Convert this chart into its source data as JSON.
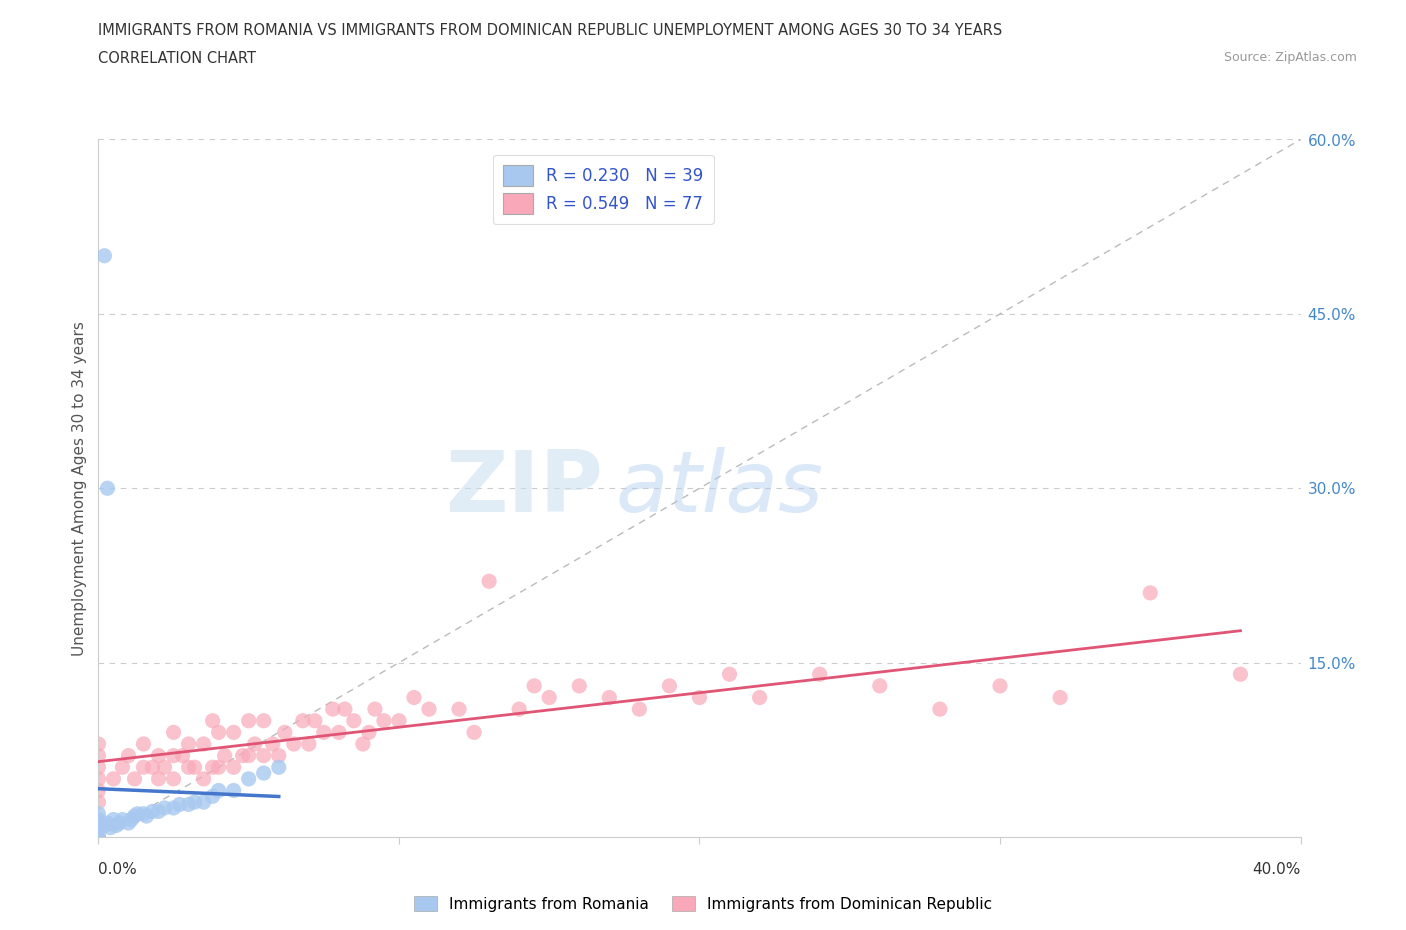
{
  "title_line1": "IMMIGRANTS FROM ROMANIA VS IMMIGRANTS FROM DOMINICAN REPUBLIC UNEMPLOYMENT AMONG AGES 30 TO 34 YEARS",
  "title_line2": "CORRELATION CHART",
  "source": "Source: ZipAtlas.com",
  "ylabel": "Unemployment Among Ages 30 to 34 years",
  "color_romania": "#a8c8f0",
  "color_dr": "#f8a8b8",
  "color_romania_line": "#4477cc",
  "color_dr_line": "#e05575",
  "diagonal_color": "#bbbbbb",
  "background_color": "#ffffff",
  "watermark_zip": "ZIP",
  "watermark_atlas": "atlas",
  "ytick_vals": [
    0.0,
    0.15,
    0.3,
    0.45,
    0.6
  ],
  "ytick_labels": [
    "",
    "15.0%",
    "30.0%",
    "45.0%",
    "60.0%"
  ],
  "xlim": [
    0.0,
    0.4
  ],
  "ylim": [
    0.0,
    0.6
  ],
  "romania_x": [
    0.0,
    0.0,
    0.0,
    0.0,
    0.0,
    0.0,
    0.0,
    0.0,
    0.0,
    0.0,
    0.002,
    0.003,
    0.004,
    0.005,
    0.006,
    0.007,
    0.008,
    0.01,
    0.011,
    0.012,
    0.013,
    0.015,
    0.016,
    0.018,
    0.02,
    0.022,
    0.025,
    0.027,
    0.03,
    0.032,
    0.035,
    0.038,
    0.04,
    0.045,
    0.05,
    0.055,
    0.06,
    0.003,
    0.002
  ],
  "romania_y": [
    0.0,
    0.0,
    0.0,
    0.005,
    0.007,
    0.008,
    0.01,
    0.012,
    0.015,
    0.02,
    0.01,
    0.012,
    0.008,
    0.015,
    0.01,
    0.012,
    0.015,
    0.012,
    0.015,
    0.018,
    0.02,
    0.02,
    0.018,
    0.022,
    0.022,
    0.025,
    0.025,
    0.028,
    0.028,
    0.03,
    0.03,
    0.035,
    0.04,
    0.04,
    0.05,
    0.055,
    0.06,
    0.3,
    0.5
  ],
  "dr_x": [
    0.0,
    0.0,
    0.0,
    0.0,
    0.0,
    0.0,
    0.005,
    0.008,
    0.01,
    0.012,
    0.015,
    0.015,
    0.018,
    0.02,
    0.02,
    0.022,
    0.025,
    0.025,
    0.025,
    0.028,
    0.03,
    0.03,
    0.032,
    0.035,
    0.035,
    0.038,
    0.038,
    0.04,
    0.04,
    0.042,
    0.045,
    0.045,
    0.048,
    0.05,
    0.05,
    0.052,
    0.055,
    0.055,
    0.058,
    0.06,
    0.062,
    0.065,
    0.068,
    0.07,
    0.072,
    0.075,
    0.078,
    0.08,
    0.082,
    0.085,
    0.088,
    0.09,
    0.092,
    0.095,
    0.1,
    0.105,
    0.11,
    0.12,
    0.125,
    0.13,
    0.14,
    0.145,
    0.15,
    0.16,
    0.17,
    0.18,
    0.19,
    0.2,
    0.21,
    0.22,
    0.24,
    0.26,
    0.28,
    0.3,
    0.32,
    0.35,
    0.38
  ],
  "dr_y": [
    0.04,
    0.06,
    0.07,
    0.08,
    0.05,
    0.03,
    0.05,
    0.06,
    0.07,
    0.05,
    0.06,
    0.08,
    0.06,
    0.05,
    0.07,
    0.06,
    0.05,
    0.07,
    0.09,
    0.07,
    0.06,
    0.08,
    0.06,
    0.05,
    0.08,
    0.06,
    0.1,
    0.06,
    0.09,
    0.07,
    0.06,
    0.09,
    0.07,
    0.07,
    0.1,
    0.08,
    0.07,
    0.1,
    0.08,
    0.07,
    0.09,
    0.08,
    0.1,
    0.08,
    0.1,
    0.09,
    0.11,
    0.09,
    0.11,
    0.1,
    0.08,
    0.09,
    0.11,
    0.1,
    0.1,
    0.12,
    0.11,
    0.11,
    0.09,
    0.22,
    0.11,
    0.13,
    0.12,
    0.13,
    0.12,
    0.11,
    0.13,
    0.12,
    0.14,
    0.12,
    0.14,
    0.13,
    0.11,
    0.13,
    0.12,
    0.21,
    0.14
  ]
}
